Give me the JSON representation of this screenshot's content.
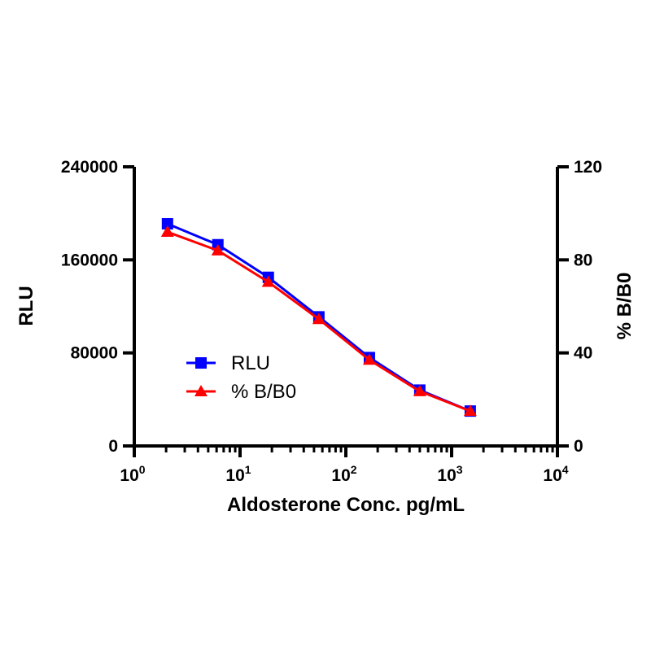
{
  "chart_data": {
    "type": "line",
    "xlabel": "Aldosterone Conc. pg/mL",
    "ylabel": "RLU",
    "y2label": "% B/B0",
    "x_scale": "log",
    "xlim": [
      1,
      10000
    ],
    "x_ticks": [
      {
        "base": "10",
        "exp": "0"
      },
      {
        "base": "10",
        "exp": "1"
      },
      {
        "base": "10",
        "exp": "2"
      },
      {
        "base": "10",
        "exp": "3"
      },
      {
        "base": "10",
        "exp": "4"
      }
    ],
    "ylim": [
      0,
      240000
    ],
    "y_ticks": [
      "0",
      "80000",
      "160000",
      "240000"
    ],
    "y2lim": [
      0,
      120
    ],
    "y2_ticks": [
      "0",
      "40",
      "80",
      "120"
    ],
    "grid": false,
    "legend_position": "center-left",
    "series": [
      {
        "name": "RLU",
        "axis": "left",
        "color": "#0000ff",
        "marker": "square",
        "x": [
          2.06,
          6.17,
          18.5,
          55.6,
          167,
          500,
          1500
        ],
        "y": [
          191000,
          173000,
          145000,
          111000,
          76000,
          48000,
          30000
        ]
      },
      {
        "name": "% B/B0",
        "axis": "right",
        "color": "#ff0000",
        "marker": "triangle",
        "x": [
          2.06,
          6.17,
          18.5,
          55.6,
          167,
          500,
          1500
        ],
        "y": [
          92,
          84,
          70.5,
          54.5,
          37,
          23.5,
          15
        ]
      }
    ]
  }
}
